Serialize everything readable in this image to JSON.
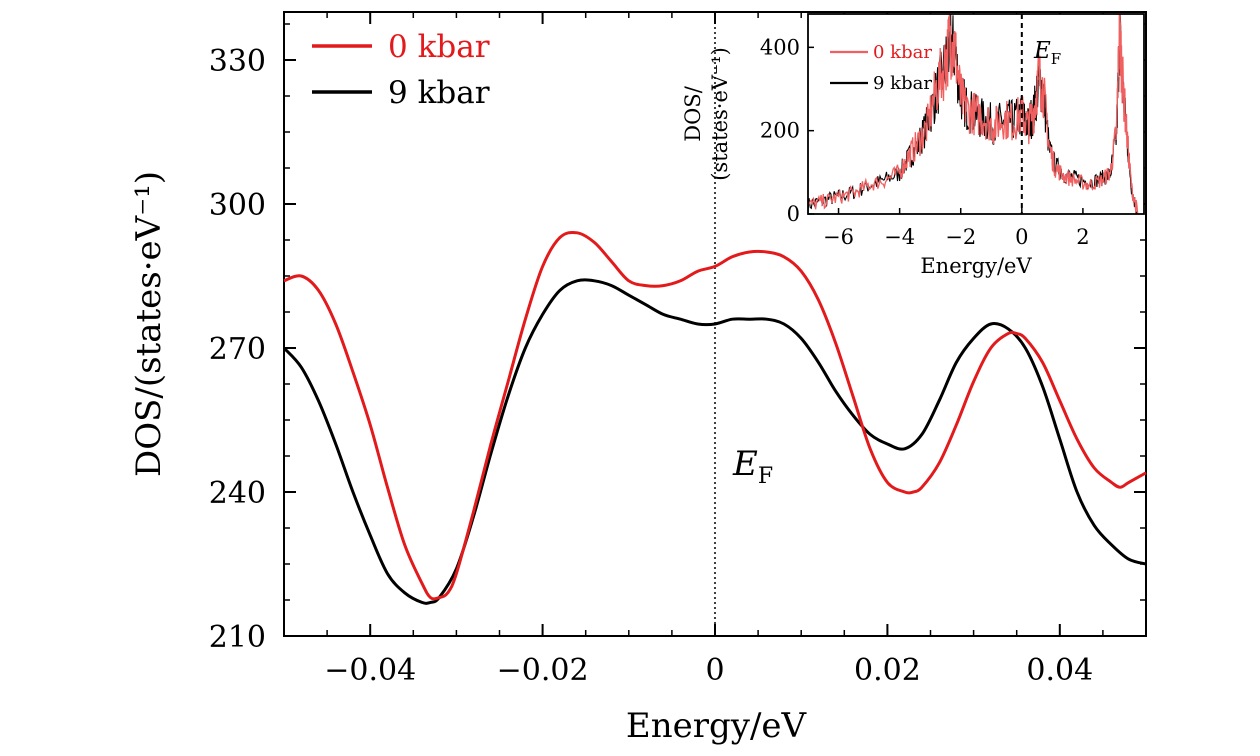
{
  "chart_data": [
    {
      "type": "line",
      "xlabel": "Energy/eV",
      "ylabel": "DOS/(states·eV⁻¹)",
      "xlim": [
        -0.05,
        0.05
      ],
      "ylim": [
        210,
        340
      ],
      "xticks": [
        -0.04,
        -0.02,
        0,
        0.02,
        0.04
      ],
      "xtick_labels": [
        "−0.04",
        "−0.02",
        "0",
        "0.02",
        "0.04"
      ],
      "yticks": [
        210,
        240,
        270,
        300,
        330
      ],
      "ytick_labels": [
        "210",
        "240",
        "270",
        "300",
        "330"
      ],
      "legend_position": "top-left",
      "annotation": {
        "text": "E",
        "subscript": "F",
        "x": 0
      },
      "fermi_line_x": 0,
      "series": [
        {
          "name": "0 kbar",
          "color": "#e31a1c",
          "x": [
            -0.05,
            -0.048,
            -0.046,
            -0.044,
            -0.042,
            -0.04,
            -0.038,
            -0.036,
            -0.034,
            -0.033,
            -0.032,
            -0.031,
            -0.03,
            -0.028,
            -0.026,
            -0.024,
            -0.022,
            -0.02,
            -0.018,
            -0.016,
            -0.014,
            -0.012,
            -0.01,
            -0.008,
            -0.006,
            -0.004,
            -0.002,
            0,
            0.002,
            0.004,
            0.006,
            0.008,
            0.01,
            0.012,
            0.014,
            0.016,
            0.018,
            0.02,
            0.022,
            0.023,
            0.024,
            0.026,
            0.028,
            0.03,
            0.032,
            0.034,
            0.035,
            0.036,
            0.038,
            0.04,
            0.042,
            0.044,
            0.046,
            0.047,
            0.048,
            0.05
          ],
          "values": [
            284,
            285,
            282,
            275,
            265,
            254,
            241,
            229,
            221,
            218,
            218,
            219,
            223,
            236,
            250,
            263,
            276,
            287,
            293,
            294,
            292,
            288,
            284,
            283,
            283,
            284,
            286,
            287,
            289,
            290,
            290,
            289,
            286,
            280,
            271,
            260,
            249,
            242,
            240,
            240,
            241,
            246,
            254,
            263,
            270,
            273,
            273,
            272,
            267,
            259,
            251,
            245,
            242,
            241,
            242,
            244
          ]
        },
        {
          "name": "9 kbar",
          "color": "#000000",
          "x": [
            -0.05,
            -0.048,
            -0.046,
            -0.044,
            -0.042,
            -0.04,
            -0.038,
            -0.036,
            -0.034,
            -0.033,
            -0.032,
            -0.03,
            -0.028,
            -0.026,
            -0.024,
            -0.022,
            -0.02,
            -0.018,
            -0.016,
            -0.014,
            -0.012,
            -0.01,
            -0.008,
            -0.006,
            -0.004,
            -0.002,
            0,
            0.002,
            0.004,
            0.006,
            0.008,
            0.01,
            0.012,
            0.014,
            0.016,
            0.018,
            0.02,
            0.022,
            0.024,
            0.026,
            0.028,
            0.03,
            0.032,
            0.034,
            0.036,
            0.038,
            0.04,
            0.042,
            0.044,
            0.046,
            0.048,
            0.05
          ],
          "values": [
            270,
            266,
            259,
            250,
            240,
            231,
            223,
            219,
            217,
            217,
            218,
            224,
            235,
            248,
            260,
            270,
            277,
            282,
            284,
            284,
            283,
            281,
            279,
            277,
            276,
            275,
            275,
            276,
            276,
            276,
            275,
            272,
            267,
            261,
            256,
            252,
            250,
            249,
            252,
            259,
            267,
            272,
            275,
            274,
            270,
            262,
            251,
            240,
            233,
            229,
            226,
            225
          ]
        }
      ]
    },
    {
      "type": "line",
      "inset": true,
      "xlabel": "Energy/eV",
      "ylabel_line1": "DOS/",
      "ylabel_line2": "(states·eV⁻¹)",
      "xlim": [
        -7,
        4
      ],
      "ylim": [
        0,
        480
      ],
      "xticks": [
        -6,
        -4,
        -2,
        0,
        2
      ],
      "xtick_labels": [
        "−6",
        "−4",
        "−2",
        "0",
        "2"
      ],
      "yticks": [
        0,
        200,
        400
      ],
      "ytick_labels": [
        "0",
        "200",
        "400"
      ],
      "legend_position": "top-left",
      "annotation": {
        "text": "E",
        "subscript": "F"
      },
      "series": [
        {
          "name": "0 kbar",
          "color": "#f06060",
          "x": [
            -7,
            -6.5,
            -6,
            -5.5,
            -5,
            -4.5,
            -4,
            -3.7,
            -3.4,
            -3.1,
            -2.8,
            -2.5,
            -2.35,
            -2.2,
            -2.0,
            -1.8,
            -1.5,
            -1.2,
            -0.9,
            -0.6,
            -0.3,
            0,
            0.2,
            0.4,
            0.55,
            0.7,
            0.9,
            1.1,
            1.4,
            1.8,
            2.2,
            2.6,
            2.9,
            3.1,
            3.2,
            3.3,
            3.45,
            3.6,
            3.8
          ],
          "values": [
            20,
            30,
            40,
            50,
            70,
            80,
            100,
            140,
            170,
            210,
            300,
            360,
            420,
            400,
            280,
            250,
            240,
            230,
            210,
            230,
            220,
            240,
            210,
            250,
            330,
            300,
            160,
            110,
            90,
            80,
            70,
            80,
            100,
            200,
            450,
            320,
            180,
            60,
            0
          ]
        },
        {
          "name": "9 kbar",
          "color": "#000000",
          "x": [
            -7,
            -6.5,
            -6,
            -5.5,
            -5,
            -4.5,
            -4,
            -3.7,
            -3.4,
            -3.1,
            -2.8,
            -2.5,
            -2.35,
            -2.2,
            -2.0,
            -1.8,
            -1.5,
            -1.2,
            -0.9,
            -0.6,
            -0.3,
            0,
            0.2,
            0.4,
            0.55,
            0.7,
            0.9,
            1.1,
            1.4,
            1.8,
            2.2,
            2.6,
            2.9,
            3.1,
            3.2,
            3.3,
            3.45,
            3.6,
            3.8
          ],
          "values": [
            22,
            32,
            42,
            52,
            68,
            82,
            98,
            135,
            165,
            215,
            290,
            355,
            410,
            390,
            285,
            255,
            235,
            225,
            215,
            225,
            225,
            235,
            215,
            245,
            325,
            295,
            155,
            115,
            95,
            85,
            75,
            85,
            95,
            190,
            440,
            310,
            175,
            55,
            0
          ]
        }
      ]
    }
  ]
}
